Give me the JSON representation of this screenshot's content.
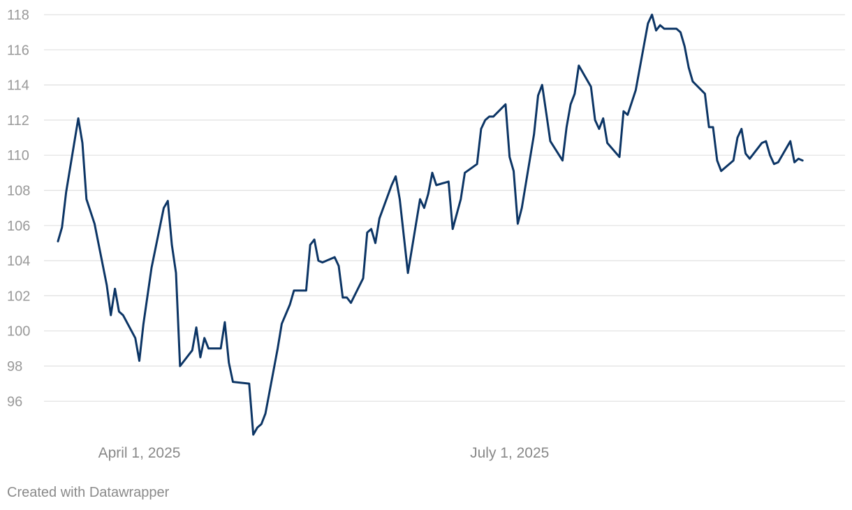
{
  "chart_data": {
    "type": "line",
    "title": "",
    "xlabel": "",
    "ylabel": "",
    "y_ticks": [
      96,
      98,
      100,
      102,
      104,
      106,
      108,
      110,
      112,
      114,
      116,
      118
    ],
    "ylim": [
      94.1,
      118.2
    ],
    "x_ticks": [
      {
        "date": "2025-04-01",
        "label": "April 1, 2025"
      },
      {
        "date": "2025-07-01",
        "label": "July 1, 2025"
      }
    ],
    "xlim": [
      "2025-03-12",
      "2025-09-18"
    ],
    "grid": true,
    "series": [
      {
        "color": "#0c3565",
        "points": [
          [
            "2025-03-12",
            105.1
          ],
          [
            "2025-03-13",
            105.9
          ],
          [
            "2025-03-14",
            107.9
          ],
          [
            "2025-03-17",
            112.1
          ],
          [
            "2025-03-18",
            110.7
          ],
          [
            "2025-03-19",
            107.5
          ],
          [
            "2025-03-21",
            106.1
          ],
          [
            "2025-03-24",
            102.6
          ],
          [
            "2025-03-25",
            100.9
          ],
          [
            "2025-03-26",
            102.4
          ],
          [
            "2025-03-27",
            101.1
          ],
          [
            "2025-03-28",
            100.9
          ],
          [
            "2025-03-31",
            99.6
          ],
          [
            "2025-04-01",
            98.3
          ],
          [
            "2025-04-02",
            100.4
          ],
          [
            "2025-04-04",
            103.6
          ],
          [
            "2025-04-07",
            107.0
          ],
          [
            "2025-04-08",
            107.4
          ],
          [
            "2025-04-09",
            104.9
          ],
          [
            "2025-04-10",
            103.3
          ],
          [
            "2025-04-11",
            98.0
          ],
          [
            "2025-04-14",
            98.9
          ],
          [
            "2025-04-15",
            100.2
          ],
          [
            "2025-04-16",
            98.5
          ],
          [
            "2025-04-17",
            99.6
          ],
          [
            "2025-04-18",
            99.0
          ],
          [
            "2025-04-21",
            99.0
          ],
          [
            "2025-04-22",
            100.5
          ],
          [
            "2025-04-23",
            98.2
          ],
          [
            "2025-04-24",
            97.1
          ],
          [
            "2025-04-28",
            97.0
          ],
          [
            "2025-04-29",
            94.1
          ],
          [
            "2025-04-30",
            94.5
          ],
          [
            "2025-05-01",
            94.7
          ],
          [
            "2025-05-02",
            95.3
          ],
          [
            "2025-05-05",
            99.0
          ],
          [
            "2025-05-06",
            100.4
          ],
          [
            "2025-05-08",
            101.5
          ],
          [
            "2025-05-09",
            102.3
          ],
          [
            "2025-05-12",
            102.3
          ],
          [
            "2025-05-13",
            104.9
          ],
          [
            "2025-05-14",
            105.2
          ],
          [
            "2025-05-15",
            104.0
          ],
          [
            "2025-05-16",
            103.9
          ],
          [
            "2025-05-19",
            104.2
          ],
          [
            "2025-05-20",
            103.7
          ],
          [
            "2025-05-21",
            101.9
          ],
          [
            "2025-05-22",
            101.9
          ],
          [
            "2025-05-23",
            101.6
          ],
          [
            "2025-05-26",
            103.0
          ],
          [
            "2025-05-27",
            105.6
          ],
          [
            "2025-05-28",
            105.8
          ],
          [
            "2025-05-29",
            105.0
          ],
          [
            "2025-05-30",
            106.4
          ],
          [
            "2025-06-02",
            108.3
          ],
          [
            "2025-06-03",
            108.8
          ],
          [
            "2025-06-04",
            107.5
          ],
          [
            "2025-06-06",
            103.3
          ],
          [
            "2025-06-09",
            107.5
          ],
          [
            "2025-06-10",
            107.0
          ],
          [
            "2025-06-11",
            107.8
          ],
          [
            "2025-06-12",
            109.0
          ],
          [
            "2025-06-13",
            108.3
          ],
          [
            "2025-06-16",
            108.5
          ],
          [
            "2025-06-17",
            105.8
          ],
          [
            "2025-06-19",
            107.5
          ],
          [
            "2025-06-20",
            109.0
          ],
          [
            "2025-06-23",
            109.5
          ],
          [
            "2025-06-24",
            111.5
          ],
          [
            "2025-06-25",
            112.0
          ],
          [
            "2025-06-26",
            112.2
          ],
          [
            "2025-06-27",
            112.2
          ],
          [
            "2025-06-30",
            112.9
          ],
          [
            "2025-07-01",
            109.9
          ],
          [
            "2025-07-02",
            109.1
          ],
          [
            "2025-07-03",
            106.1
          ],
          [
            "2025-07-04",
            107.0
          ],
          [
            "2025-07-07",
            111.2
          ],
          [
            "2025-07-08",
            113.4
          ],
          [
            "2025-07-09",
            114.0
          ],
          [
            "2025-07-10",
            112.4
          ],
          [
            "2025-07-11",
            110.8
          ],
          [
            "2025-07-14",
            109.7
          ],
          [
            "2025-07-15",
            111.6
          ],
          [
            "2025-07-16",
            112.9
          ],
          [
            "2025-07-17",
            113.5
          ],
          [
            "2025-07-18",
            115.1
          ],
          [
            "2025-07-21",
            113.9
          ],
          [
            "2025-07-22",
            112.0
          ],
          [
            "2025-07-23",
            111.5
          ],
          [
            "2025-07-24",
            112.1
          ],
          [
            "2025-07-25",
            110.7
          ],
          [
            "2025-07-28",
            109.9
          ],
          [
            "2025-07-29",
            112.5
          ],
          [
            "2025-07-30",
            112.3
          ],
          [
            "2025-07-31",
            113.0
          ],
          [
            "2025-08-01",
            113.7
          ],
          [
            "2025-08-04",
            117.5
          ],
          [
            "2025-08-05",
            118.0
          ],
          [
            "2025-08-06",
            117.1
          ],
          [
            "2025-08-07",
            117.4
          ],
          [
            "2025-08-08",
            117.2
          ],
          [
            "2025-08-11",
            117.2
          ],
          [
            "2025-08-12",
            117.0
          ],
          [
            "2025-08-13",
            116.2
          ],
          [
            "2025-08-14",
            115.0
          ],
          [
            "2025-08-15",
            114.2
          ],
          [
            "2025-08-18",
            113.5
          ],
          [
            "2025-08-19",
            111.6
          ],
          [
            "2025-08-20",
            111.6
          ],
          [
            "2025-08-21",
            109.7
          ],
          [
            "2025-08-22",
            109.1
          ],
          [
            "2025-08-25",
            109.7
          ],
          [
            "2025-08-26",
            111.0
          ],
          [
            "2025-08-27",
            111.5
          ],
          [
            "2025-08-28",
            110.1
          ],
          [
            "2025-08-29",
            109.8
          ],
          [
            "2025-09-01",
            110.7
          ],
          [
            "2025-09-02",
            110.8
          ],
          [
            "2025-09-03",
            110.0
          ],
          [
            "2025-09-04",
            109.5
          ],
          [
            "2025-09-05",
            109.6
          ],
          [
            "2025-09-08",
            110.8
          ],
          [
            "2025-09-09",
            109.6
          ],
          [
            "2025-09-10",
            109.8
          ],
          [
            "2025-09-11",
            109.7
          ]
        ]
      }
    ]
  },
  "footer": {
    "credit": "Created with Datawrapper"
  }
}
